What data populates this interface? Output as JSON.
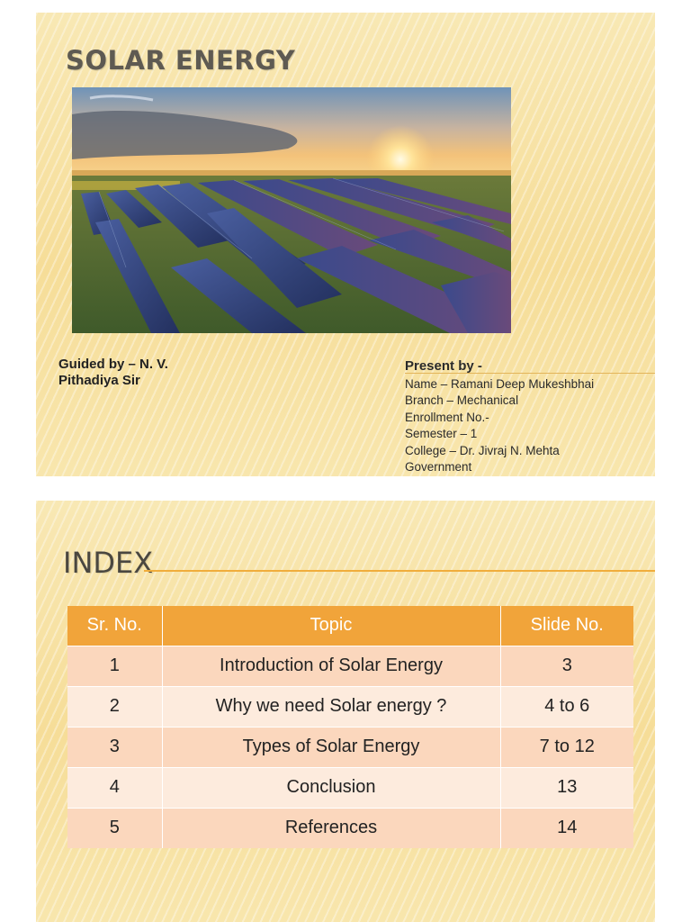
{
  "slide1": {
    "title": "SOLAR  ENERGY",
    "photo_alt": "solar-farm-sunset",
    "guided_by": {
      "line1": "Guided by – N. V.",
      "line2": "Pithadiya Sir"
    },
    "present_by": {
      "heading": "Present by -",
      "lines": [
        "Name – Ramani Deep Mukeshbhai",
        "Branch – Mechanical",
        "Enrollment No.-",
        "Semester – 1",
        "College – Dr. Jivraj N. Mehta",
        "Government"
      ]
    }
  },
  "slide2": {
    "title": "INDEX",
    "table": {
      "headers": [
        "Sr. No.",
        "Topic",
        "Slide No."
      ],
      "rows": [
        [
          "1",
          "Introduction of Solar Energy",
          "3"
        ],
        [
          "2",
          "Why we need Solar energy ?",
          "4 to 6"
        ],
        [
          "3",
          "Types of Solar Energy",
          "7 to 12"
        ],
        [
          "4",
          "Conclusion",
          "13"
        ],
        [
          "5",
          "References",
          "14"
        ]
      ]
    }
  },
  "colors": {
    "slide_bg": "#f7e3a4",
    "table_header": "#f1a43a",
    "row_odd": "#fbd7bd",
    "row_even": "#fdebdd",
    "accent_line": "#f0ad3c"
  }
}
